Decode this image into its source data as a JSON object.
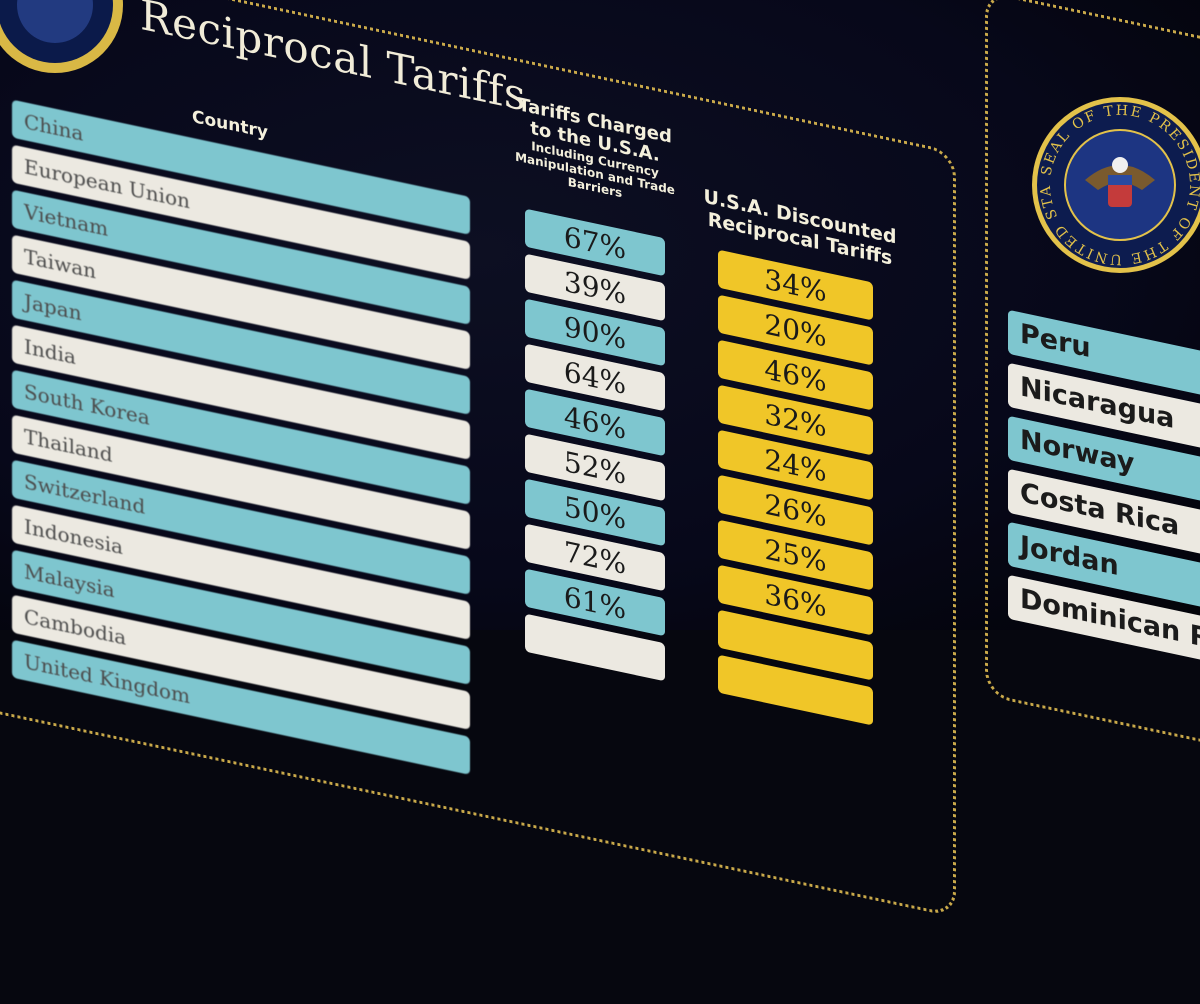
{
  "title": "Reciprocal Tariffs",
  "seal_text": "SEAL OF THE PRESIDENT OF THE UNITED STATES",
  "headers": {
    "country": "Country",
    "tariff_main": "Tariffs Charged to the U.S.A.",
    "tariff_sub": "Including Currency Manipulation and Trade Barriers",
    "discounted": "U.S.A. Discounted Reciprocal Tariffs"
  },
  "colors": {
    "row_blue": "#7ec6cf",
    "row_white": "#ece9e1",
    "discount_yellow": "#f0c628",
    "background": "#07081a",
    "frame_gold": "#c9a94a"
  },
  "chart_data": {
    "type": "table",
    "title": "Reciprocal Tariffs",
    "columns": [
      "Country",
      "Tariffs Charged to the U.S.A. Including Currency Manipulation and Trade Barriers",
      "U.S.A. Discounted Reciprocal Tariffs"
    ],
    "rows": [
      {
        "country": "China",
        "tariff": "67%",
        "discounted": "34%"
      },
      {
        "country": "European Union",
        "tariff": "39%",
        "discounted": "20%"
      },
      {
        "country": "Vietnam",
        "tariff": "90%",
        "discounted": "46%"
      },
      {
        "country": "Taiwan",
        "tariff": "64%",
        "discounted": "32%"
      },
      {
        "country": "Japan",
        "tariff": "46%",
        "discounted": "24%"
      },
      {
        "country": "India",
        "tariff": "52%",
        "discounted": "26%"
      },
      {
        "country": "South Korea",
        "tariff": "50%",
        "discounted": "25%"
      },
      {
        "country": "Thailand",
        "tariff": "72%",
        "discounted": "36%"
      },
      {
        "country": "Switzerland",
        "tariff": "61%",
        "discounted": ""
      },
      {
        "country": "Indonesia",
        "tariff": "",
        "discounted": ""
      },
      {
        "country": "Malaysia",
        "tariff": "",
        "discounted": ""
      },
      {
        "country": "Cambodia",
        "tariff": "",
        "discounted": ""
      },
      {
        "country": "United Kingdom",
        "tariff": "",
        "discounted": ""
      }
    ]
  },
  "right_panel": {
    "countries": [
      "Peru",
      "Nicaragua",
      "Norway",
      "Costa Rica",
      "Jordan",
      "Dominican R"
    ]
  }
}
